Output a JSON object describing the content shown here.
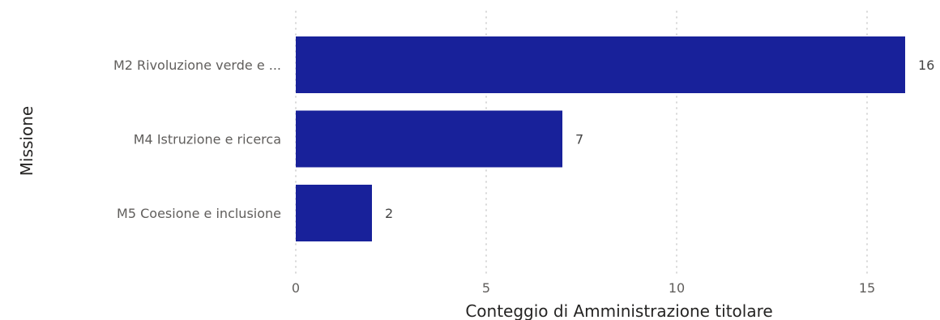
{
  "chart_data": {
    "type": "bar",
    "orientation": "horizontal",
    "categories": [
      "M2 Rivoluzione verde e ...",
      "M4 Istruzione e ricerca",
      "M5 Coesione e inclusione"
    ],
    "values": [
      16,
      7,
      2
    ],
    "xlabel": "Conteggio di Amministrazione titolare",
    "ylabel": "Missione",
    "xlim": [
      0,
      16
    ],
    "xticks": [
      0,
      5,
      10,
      15
    ],
    "grid": true,
    "data_labels": true,
    "bar_color": "#18219a"
  }
}
